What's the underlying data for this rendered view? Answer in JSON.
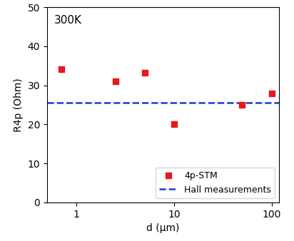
{
  "chart_data": {
    "type": "scatter",
    "x_label": "d (µm)",
    "y_label": "R4p (Ohm)",
    "annotations": [
      "300K"
    ],
    "log": "x",
    "xlim": [
      0.5,
      120
    ],
    "xticks": [
      1,
      10,
      100
    ],
    "ylim": [
      0,
      50
    ],
    "yticks": [
      0,
      10,
      20,
      30,
      40,
      50
    ],
    "grid": false,
    "legend": "lower right",
    "series": [
      {
        "name": "4p-STM",
        "type": "scatter",
        "marker": "square",
        "color": "#e8191b",
        "x": [
          0.7,
          2.5,
          5,
          10,
          50,
          100
        ],
        "values": [
          34.2,
          31,
          33.3,
          20,
          25,
          28
        ]
      },
      {
        "name": "Hall measurements",
        "type": "line",
        "line_style": "dashed",
        "color": "#1a3fcc",
        "x": [
          0.5,
          120
        ],
        "values": [
          25.5,
          25.5
        ]
      }
    ]
  }
}
